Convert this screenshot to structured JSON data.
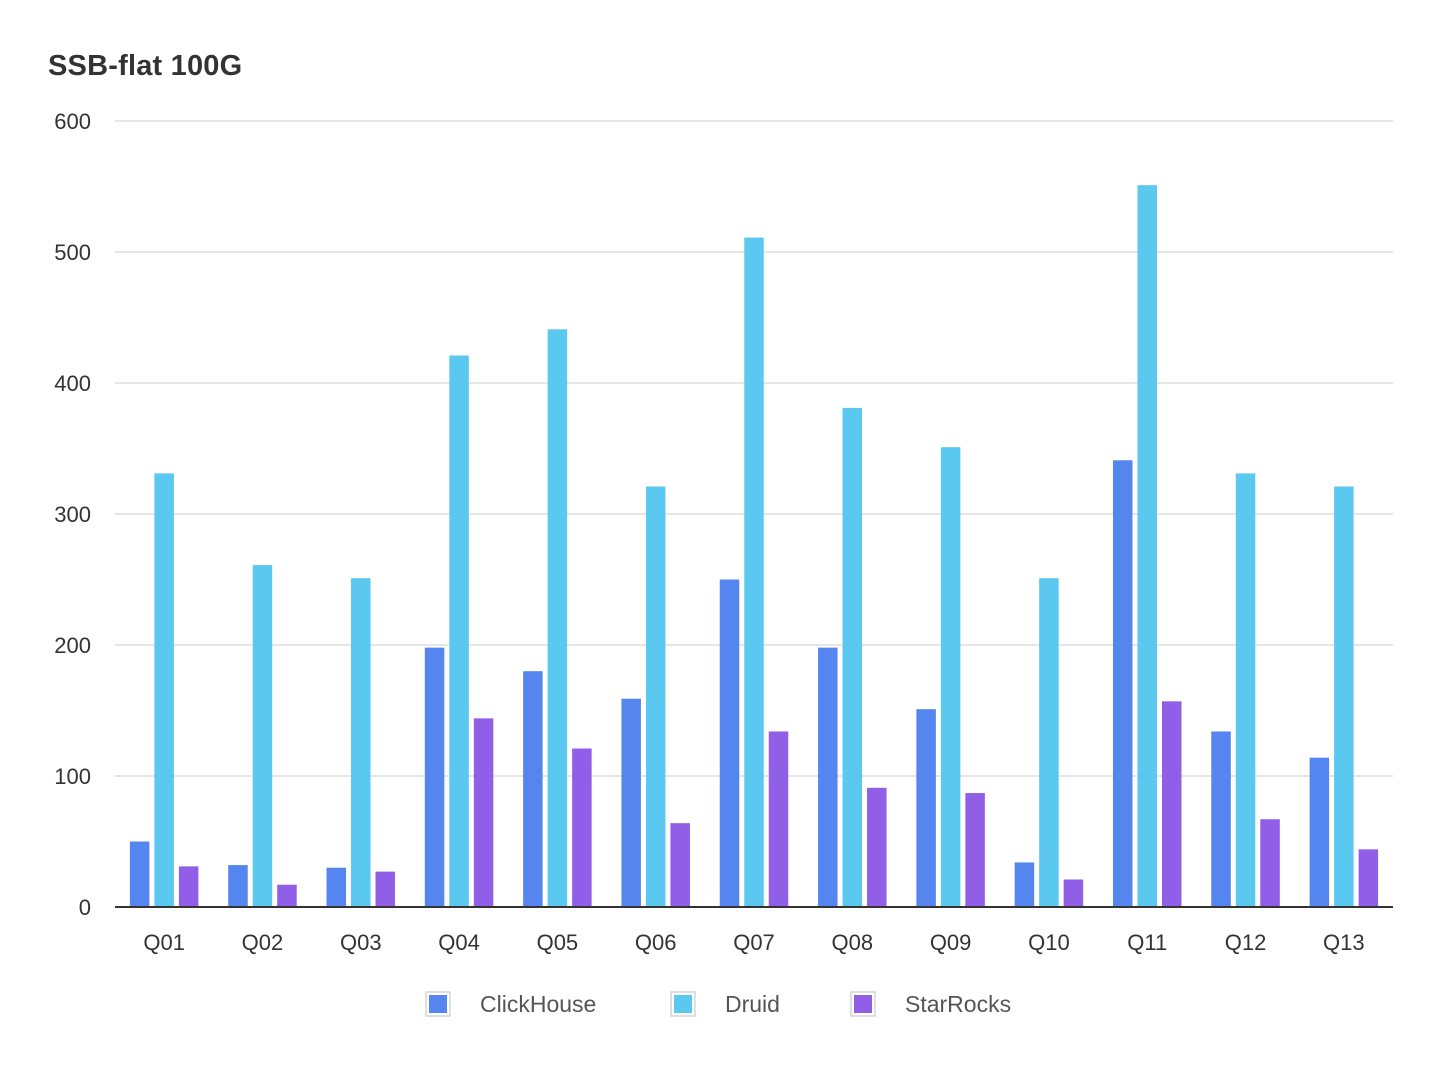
{
  "chart_data": {
    "type": "bar",
    "title": "SSB-flat 100G",
    "xlabel": "",
    "ylabel": "",
    "ylim": [
      0,
      600
    ],
    "yticks": [
      0,
      100,
      200,
      300,
      400,
      500,
      600
    ],
    "grid": true,
    "legend_position": "bottom",
    "categories": [
      "Q01",
      "Q02",
      "Q03",
      "Q04",
      "Q05",
      "Q06",
      "Q07",
      "Q08",
      "Q09",
      "Q10",
      "Q11",
      "Q12",
      "Q13"
    ],
    "series": [
      {
        "name": "ClickHouse",
        "color": "#5585EE",
        "values": [
          50,
          32,
          30,
          198,
          180,
          159,
          250,
          198,
          151,
          34,
          341,
          134,
          114
        ]
      },
      {
        "name": "Druid",
        "color": "#5BC8F0",
        "values": [
          331,
          261,
          251,
          421,
          441,
          321,
          511,
          381,
          351,
          251,
          551,
          331,
          321
        ]
      },
      {
        "name": "StarRocks",
        "color": "#915EE8",
        "values": [
          31,
          17,
          27,
          144,
          121,
          64,
          134,
          91,
          87,
          21,
          157,
          67,
          44
        ]
      }
    ]
  }
}
